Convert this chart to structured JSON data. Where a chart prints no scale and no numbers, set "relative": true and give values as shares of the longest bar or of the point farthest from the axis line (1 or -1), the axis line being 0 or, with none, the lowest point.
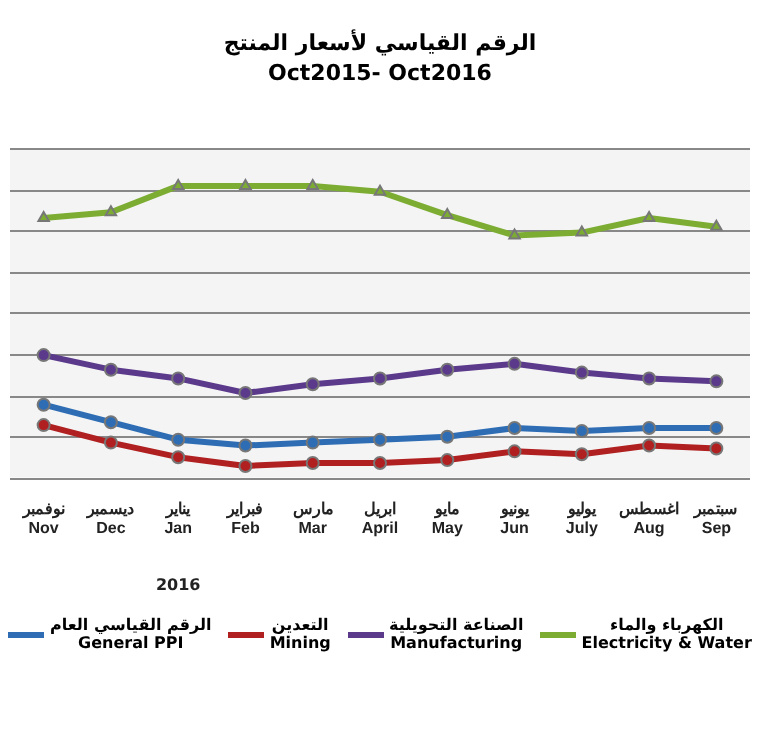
{
  "chart_data": {
    "type": "line",
    "title": "الرقم القياسي لأسعار المنتج",
    "subtitle": "Oct2015- Oct2016",
    "relative": true,
    "grid": "y",
    "legend": "bottom",
    "line_style": "solid",
    "categories": [
      "نوفمبر\nNov",
      "ديسمبر\nDec",
      "يناير\nJan",
      "فبراير\nFeb",
      "مارس\nMar",
      "ابريل\nApril",
      "مايو\nMay",
      "يونيو\nJun",
      "يوليو\nJuly",
      "اغسطس\nAug",
      "سبتمبر\nSep"
    ],
    "annotations": [
      "2016"
    ],
    "series": [
      {
        "name": "الرقم القياسي العام\nGeneral  PPI",
        "color": "#2e6db4",
        "marker": "circle",
        "values": [
          0.25,
          0.19,
          0.13,
          0.11,
          0.12,
          0.13,
          0.14,
          0.17,
          0.16,
          0.17,
          0.17
        ]
      },
      {
        "name": "التعدين\nMining",
        "color": "#b02020",
        "marker": "circle",
        "values": [
          0.18,
          0.12,
          0.07,
          0.04,
          0.05,
          0.05,
          0.06,
          0.09,
          0.08,
          0.11,
          0.1
        ]
      },
      {
        "name": "الصناعة التحويلية\nManufacturing",
        "color": "#5b3a8c",
        "marker": "circle",
        "values": [
          0.42,
          0.37,
          0.34,
          0.29,
          0.32,
          0.34,
          0.37,
          0.39,
          0.36,
          0.34,
          0.33
        ]
      },
      {
        "name": "الكهرباء والماء\nElectricity & Water",
        "color": "#7cad32",
        "marker": "triangle",
        "values": [
          0.89,
          0.91,
          1,
          1,
          1,
          0.98,
          0.9,
          0.83,
          0.84,
          0.89,
          0.86
        ]
      }
    ]
  }
}
